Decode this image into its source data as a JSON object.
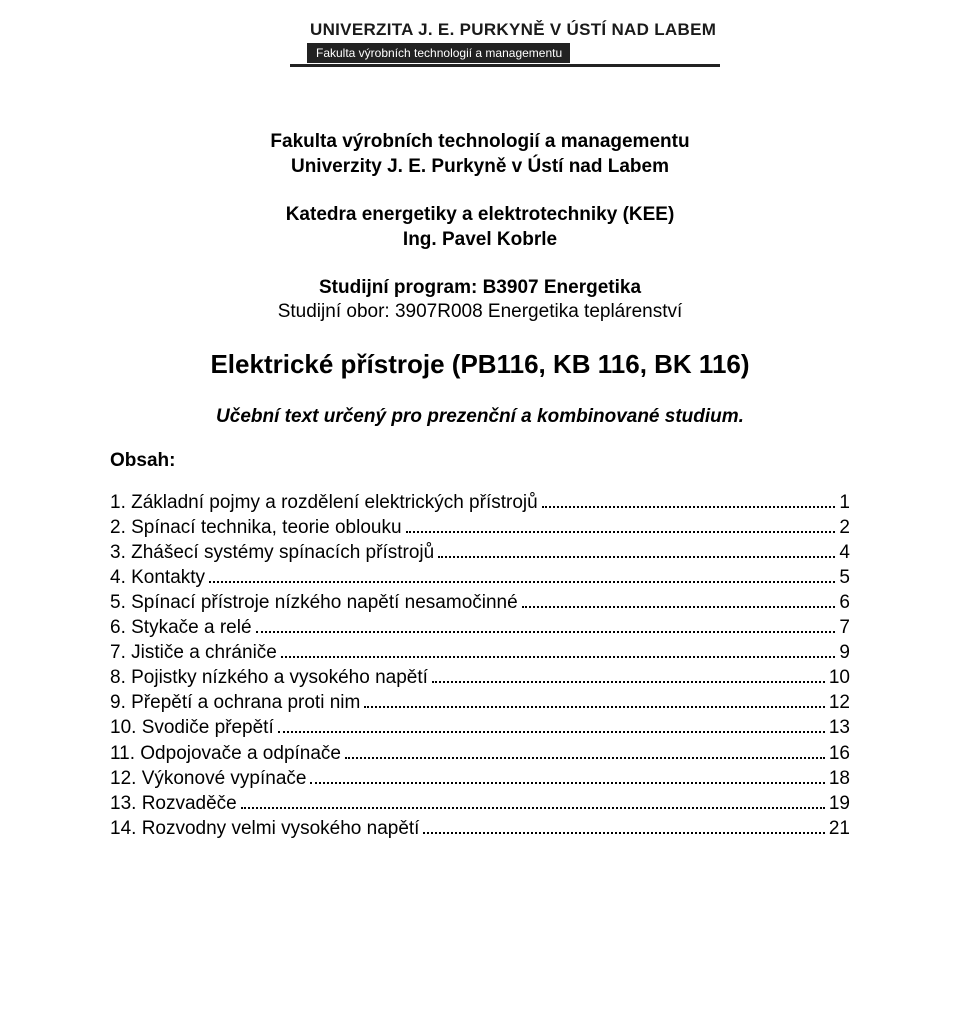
{
  "colors": {
    "background": "#ffffff",
    "text": "#000000",
    "header_dark": "#222222",
    "header_text_light": "#ffffff"
  },
  "typography": {
    "body_fontsize_pt": 14,
    "title_fontsize_pt": 20,
    "header_uni_fontsize_pt": 13,
    "header_faculty_fontsize_pt": 9
  },
  "header": {
    "university": "UNIVERZITA J. E. PURKYNĚ V ÚSTÍ NAD LABEM",
    "faculty": "Fakulta výrobních technologií a managementu"
  },
  "dept": {
    "line1": "Fakulta výrobních technologií a managementu",
    "line2": "Univerzity J. E. Purkyně v Ústí nad Labem"
  },
  "kee": {
    "line1": "Katedra energetiky a elektrotechniky (KEE)",
    "line2": "Ing. Pavel Kobrle"
  },
  "program": "Studijní program: B3907 Energetika",
  "obor": "Studijní obor: 3907R008 Energetika teplárenství",
  "main_title": "Elektrické přístroje (PB116, KB 116, BK 116)",
  "subtitle": "Učební text určený pro prezenční a kombinované studium.",
  "obsah_label": "Obsah:",
  "toc": [
    {
      "label": "1. Základní pojmy a rozdělení elektrických přístrojů",
      "page": "1"
    },
    {
      "label": "2. Spínací technika, teorie oblouku",
      "page": "2"
    },
    {
      "label": "3. Zhášecí systémy spínacích přístrojů",
      "page": "4"
    },
    {
      "label": "4. Kontakty",
      "page": "5"
    },
    {
      "label": "5. Spínací přístroje nízkého napětí nesamočinné",
      "page": "6"
    },
    {
      "label": "6. Stykače a relé",
      "page": "7"
    },
    {
      "label": "7. Jističe a chrániče",
      "page": "9"
    },
    {
      "label": "8. Pojistky nízkého a vysokého napětí",
      "page": "10"
    },
    {
      "label": "9. Přepětí a ochrana proti nim",
      "page": "12"
    },
    {
      "label": "10. Svodiče přepětí",
      "page": "13"
    },
    {
      "label": "11. Odpojovače a odpínače",
      "page": "16"
    },
    {
      "label": "12. Výkonové vypínače",
      "page": "18"
    },
    {
      "label": "13. Rozvaděče",
      "page": "19"
    },
    {
      "label": "14. Rozvodny velmi vysokého napětí",
      "page": "21"
    }
  ]
}
